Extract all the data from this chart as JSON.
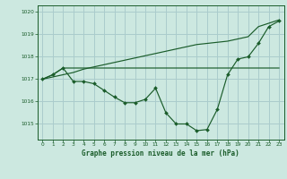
{
  "title": "Graphe pression niveau de la mer (hPa)",
  "bg_color": "#cce8e0",
  "grid_color": "#aacccc",
  "line_color": "#1a5c2a",
  "text_color": "#1a5c2a",
  "xlim": [
    -0.5,
    23.5
  ],
  "ylim": [
    1014.3,
    1020.3
  ],
  "yticks": [
    1015,
    1016,
    1017,
    1018,
    1019,
    1020
  ],
  "xticks": [
    0,
    1,
    2,
    3,
    4,
    5,
    6,
    7,
    8,
    9,
    10,
    11,
    12,
    13,
    14,
    15,
    16,
    17,
    18,
    19,
    20,
    21,
    22,
    23
  ],
  "hours": [
    0,
    1,
    2,
    3,
    4,
    5,
    6,
    7,
    8,
    9,
    10,
    11,
    12,
    13,
    14,
    15,
    16,
    17,
    18,
    19,
    20,
    21,
    22,
    23
  ],
  "pressure_main": [
    1017.0,
    1017.2,
    1017.5,
    1016.9,
    1016.9,
    1016.8,
    1016.5,
    1016.2,
    1015.95,
    1015.95,
    1016.1,
    1016.6,
    1015.5,
    1015.0,
    1015.0,
    1014.7,
    1014.75,
    1015.65,
    1017.2,
    1017.9,
    1018.0,
    1018.6,
    1019.35,
    1019.6
  ],
  "pressure_diag": [
    1017.0,
    1017.1,
    1017.2,
    1017.3,
    1017.45,
    1017.55,
    1017.65,
    1017.75,
    1017.85,
    1017.95,
    1018.05,
    1018.15,
    1018.25,
    1018.35,
    1018.45,
    1018.55,
    1018.6,
    1018.65,
    1018.7,
    1018.8,
    1018.9,
    1019.35,
    1019.5,
    1019.65
  ],
  "pressure_flat": [
    1017.0,
    1017.2,
    1017.5,
    1017.5,
    1017.5,
    1017.5,
    1017.5,
    1017.5,
    1017.5,
    1017.5,
    1017.5,
    1017.5,
    1017.5,
    1017.5,
    1017.5,
    1017.5,
    1017.5,
    1017.5,
    1017.5,
    1017.5,
    1017.5,
    1017.5,
    1017.5,
    1017.5
  ]
}
